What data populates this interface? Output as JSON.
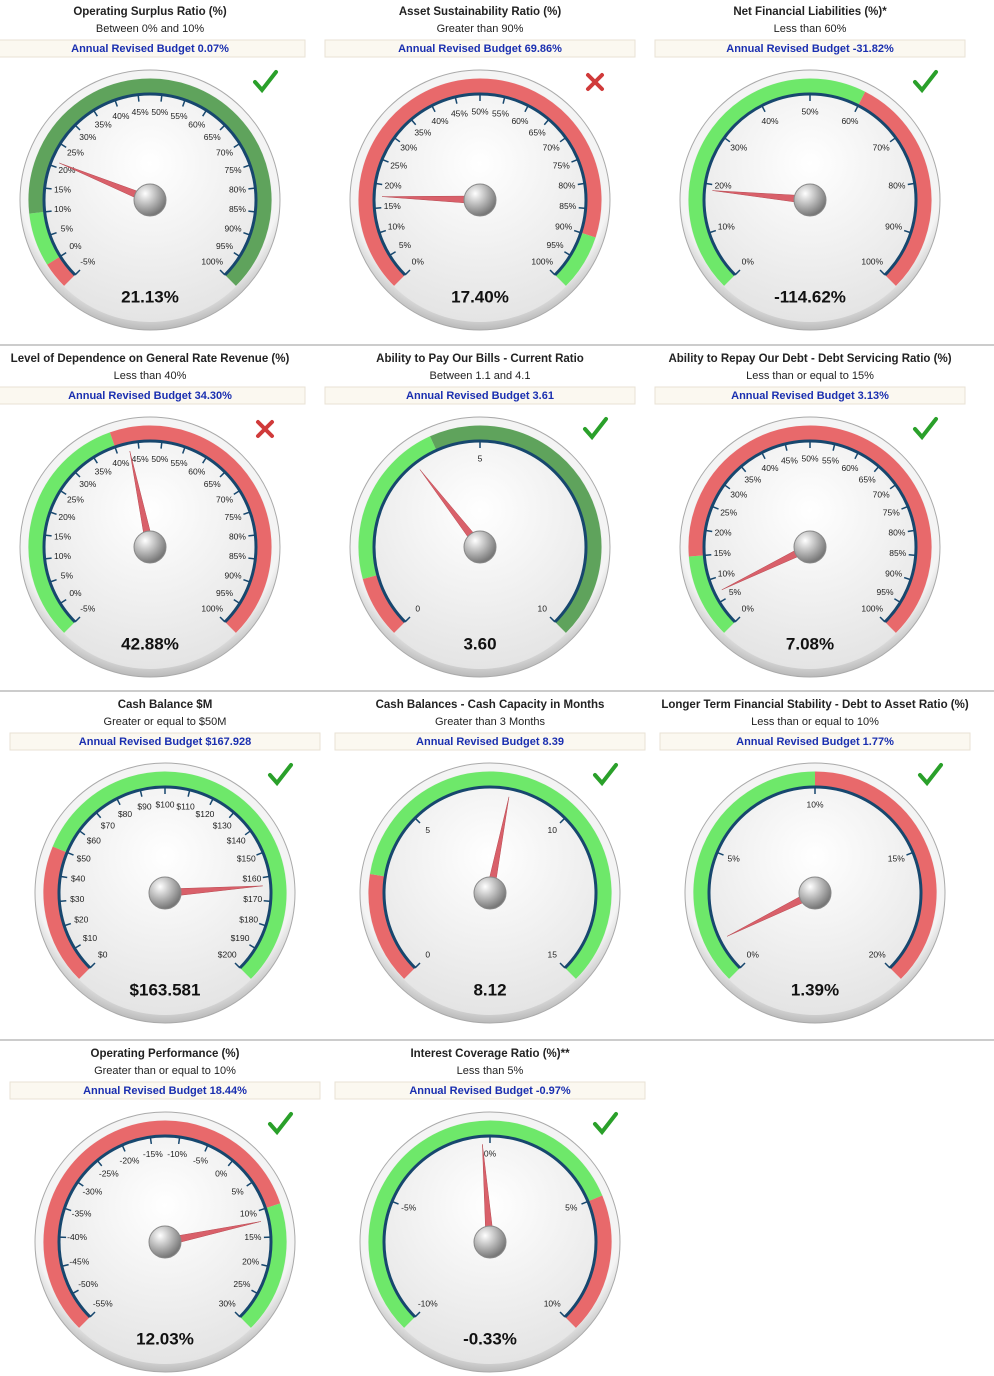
{
  "chart_data": [
    {
      "type": "gauge",
      "title": "Operating Surplus Ratio (%)",
      "subtitle": "Between 0% and 10%",
      "budget": "Annual Revised Budget 0.07%",
      "value": 21.13,
      "value_label": "21.13%",
      "lim": [
        -5,
        100
      ],
      "status": "pass",
      "ticks": [
        {
          "value": -5,
          "label": "-5%"
        },
        {
          "value": 0,
          "label": "0%"
        },
        {
          "value": 5,
          "label": "5%"
        },
        {
          "value": 10,
          "label": "10%"
        },
        {
          "value": 15,
          "label": "15%"
        },
        {
          "value": 20,
          "label": "20%"
        },
        {
          "value": 25,
          "label": "25%"
        },
        {
          "value": 30,
          "label": "30%"
        },
        {
          "value": 35,
          "label": "35%"
        },
        {
          "value": 40,
          "label": "40%"
        },
        {
          "value": 45,
          "label": "45%"
        },
        {
          "value": 50,
          "label": "50%"
        },
        {
          "value": 55,
          "label": "55%"
        },
        {
          "value": 60,
          "label": "60%"
        },
        {
          "value": 65,
          "label": "65%"
        },
        {
          "value": 70,
          "label": "70%"
        },
        {
          "value": 75,
          "label": "75%"
        },
        {
          "value": 80,
          "label": "80%"
        },
        {
          "value": 85,
          "label": "85%"
        },
        {
          "value": 90,
          "label": "90%"
        },
        {
          "value": 95,
          "label": "95%"
        },
        {
          "value": 100,
          "label": "100%"
        }
      ],
      "bands": [
        {
          "from": -5,
          "to": 0,
          "color": "#e8696b"
        },
        {
          "from": 0,
          "to": 10,
          "color": "#6ee86a"
        },
        {
          "from": 10,
          "to": 100,
          "color": "#5fa35c"
        }
      ]
    },
    {
      "type": "gauge",
      "title": "Asset Sustainability Ratio (%)",
      "subtitle": "Greater than 90%",
      "budget": "Annual Revised Budget  69.86%",
      "value": 17.4,
      "value_label": "17.40%",
      "lim": [
        0,
        100
      ],
      "status": "fail",
      "ticks": [
        {
          "value": 0,
          "label": "0%"
        },
        {
          "value": 5,
          "label": "5%"
        },
        {
          "value": 10,
          "label": "10%"
        },
        {
          "value": 15,
          "label": "15%"
        },
        {
          "value": 20,
          "label": "20%"
        },
        {
          "value": 25,
          "label": "25%"
        },
        {
          "value": 30,
          "label": "30%"
        },
        {
          "value": 35,
          "label": "35%"
        },
        {
          "value": 40,
          "label": "40%"
        },
        {
          "value": 45,
          "label": "45%"
        },
        {
          "value": 50,
          "label": "50%"
        },
        {
          "value": 55,
          "label": "55%"
        },
        {
          "value": 60,
          "label": "60%"
        },
        {
          "value": 65,
          "label": "65%"
        },
        {
          "value": 70,
          "label": "70%"
        },
        {
          "value": 75,
          "label": "75%"
        },
        {
          "value": 80,
          "label": "80%"
        },
        {
          "value": 85,
          "label": "85%"
        },
        {
          "value": 90,
          "label": "90%"
        },
        {
          "value": 95,
          "label": "95%"
        },
        {
          "value": 100,
          "label": "100%"
        }
      ],
      "bands": [
        {
          "from": 0,
          "to": 90,
          "color": "#e8696b"
        },
        {
          "from": 90,
          "to": 100,
          "color": "#6ee86a"
        }
      ]
    },
    {
      "type": "gauge",
      "title": "Net Financial Liabilities (%)*",
      "subtitle": "Less than 60%",
      "budget": "Annual Revised Budget -31.82%",
      "value": -114.62,
      "value_label": "-114.62%",
      "lim": [
        0,
        100
      ],
      "status": "pass",
      "ticks": [
        {
          "value": 0,
          "label": "0%"
        },
        {
          "value": 10,
          "label": "10%"
        },
        {
          "value": 20,
          "label": "20%"
        },
        {
          "value": 30,
          "label": "30%"
        },
        {
          "value": 40,
          "label": "40%"
        },
        {
          "value": 50,
          "label": "50%"
        },
        {
          "value": 60,
          "label": "60%"
        },
        {
          "value": 70,
          "label": "70%"
        },
        {
          "value": 80,
          "label": "80%"
        },
        {
          "value": 90,
          "label": "90%"
        },
        {
          "value": 100,
          "label": "100%"
        }
      ],
      "bands": [
        {
          "from": 0,
          "to": 60,
          "color": "#6ee86a"
        },
        {
          "from": 60,
          "to": 100,
          "color": "#e8696b"
        }
      ]
    },
    {
      "type": "gauge",
      "title": "Level of Dependence on General Rate Revenue (%)",
      "subtitle": "Less than 40%",
      "budget": "Annual Revised Budget  34.30%",
      "value": 42.88,
      "value_label": "42.88%",
      "lim": [
        -5,
        100
      ],
      "status": "fail",
      "ticks": [
        {
          "value": -5,
          "label": "-5%"
        },
        {
          "value": 0,
          "label": "0%"
        },
        {
          "value": 5,
          "label": "5%"
        },
        {
          "value": 10,
          "label": "10%"
        },
        {
          "value": 15,
          "label": "15%"
        },
        {
          "value": 20,
          "label": "20%"
        },
        {
          "value": 25,
          "label": "25%"
        },
        {
          "value": 30,
          "label": "30%"
        },
        {
          "value": 35,
          "label": "35%"
        },
        {
          "value": 40,
          "label": "40%"
        },
        {
          "value": 45,
          "label": "45%"
        },
        {
          "value": 50,
          "label": "50%"
        },
        {
          "value": 55,
          "label": "55%"
        },
        {
          "value": 60,
          "label": "60%"
        },
        {
          "value": 65,
          "label": "65%"
        },
        {
          "value": 70,
          "label": "70%"
        },
        {
          "value": 75,
          "label": "75%"
        },
        {
          "value": 80,
          "label": "80%"
        },
        {
          "value": 85,
          "label": "85%"
        },
        {
          "value": 90,
          "label": "90%"
        },
        {
          "value": 95,
          "label": "95%"
        },
        {
          "value": 100,
          "label": "100%"
        }
      ],
      "bands": [
        {
          "from": -5,
          "to": 40,
          "color": "#6ee86a"
        },
        {
          "from": 40,
          "to": 100,
          "color": "#e8696b"
        }
      ]
    },
    {
      "type": "gauge",
      "title": "Ability to Pay Our Bills - Current Ratio",
      "subtitle": "Between 1.1 and 4.1",
      "budget": "Annual Revised Budget 3.61",
      "value": 3.6,
      "value_label": "3.60",
      "lim": [
        0,
        10
      ],
      "status": "pass",
      "ticks": [
        0,
        5,
        10
      ],
      "bands": [
        {
          "from": 0,
          "to": 1.1,
          "color": "#e8696b"
        },
        {
          "from": 1.1,
          "to": 4.1,
          "color": "#6ee86a"
        },
        {
          "from": 4.1,
          "to": 10,
          "color": "#5fa35c"
        }
      ]
    },
    {
      "type": "gauge",
      "title": "Ability to Repay Our Debt - Debt Servicing Ratio (%)",
      "subtitle": "Less than or equal to 15%",
      "budget": "Annual Revised Budget 3.13%",
      "value": 7.08,
      "value_label": "7.08%",
      "lim": [
        0,
        100
      ],
      "status": "pass",
      "ticks": [
        {
          "value": 0,
          "label": "0%"
        },
        {
          "value": 5,
          "label": "5%"
        },
        {
          "value": 10,
          "label": "10%"
        },
        {
          "value": 15,
          "label": "15%"
        },
        {
          "value": 20,
          "label": "20%"
        },
        {
          "value": 25,
          "label": "25%"
        },
        {
          "value": 30,
          "label": "30%"
        },
        {
          "value": 35,
          "label": "35%"
        },
        {
          "value": 40,
          "label": "40%"
        },
        {
          "value": 45,
          "label": "45%"
        },
        {
          "value": 50,
          "label": "50%"
        },
        {
          "value": 55,
          "label": "55%"
        },
        {
          "value": 60,
          "label": "60%"
        },
        {
          "value": 65,
          "label": "65%"
        },
        {
          "value": 70,
          "label": "70%"
        },
        {
          "value": 75,
          "label": "75%"
        },
        {
          "value": 80,
          "label": "80%"
        },
        {
          "value": 85,
          "label": "85%"
        },
        {
          "value": 90,
          "label": "90%"
        },
        {
          "value": 95,
          "label": "95%"
        },
        {
          "value": 100,
          "label": "100%"
        }
      ],
      "bands": [
        {
          "from": 0,
          "to": 15,
          "color": "#6ee86a"
        },
        {
          "from": 15,
          "to": 100,
          "color": "#e8696b"
        }
      ]
    },
    {
      "type": "gauge",
      "title": "Cash Balance $M",
      "subtitle": "Greater or equal to $50M",
      "budget": "Annual Revised Budget $167.928",
      "value": 163.581,
      "value_label": "$163.581",
      "lim": [
        0,
        200
      ],
      "status": "pass",
      "ticks": [
        {
          "value": 0,
          "label": "$0"
        },
        {
          "value": 10,
          "label": "$10"
        },
        {
          "value": 20,
          "label": "$20"
        },
        {
          "value": 30,
          "label": "$30"
        },
        {
          "value": 40,
          "label": "$40"
        },
        {
          "value": 50,
          "label": "$50"
        },
        {
          "value": 60,
          "label": "$60"
        },
        {
          "value": 70,
          "label": "$70"
        },
        {
          "value": 80,
          "label": "$80"
        },
        {
          "value": 90,
          "label": "$90"
        },
        {
          "value": 100,
          "label": "$100"
        },
        {
          "value": 110,
          "label": "$110"
        },
        {
          "value": 120,
          "label": "$120"
        },
        {
          "value": 130,
          "label": "$130"
        },
        {
          "value": 140,
          "label": "$140"
        },
        {
          "value": 150,
          "label": "$150"
        },
        {
          "value": 160,
          "label": "$160"
        },
        {
          "value": 170,
          "label": "$170"
        },
        {
          "value": 180,
          "label": "$180"
        },
        {
          "value": 190,
          "label": "$190"
        },
        {
          "value": 200,
          "label": "$200"
        }
      ],
      "bands": [
        {
          "from": 0,
          "to": 50,
          "color": "#e8696b"
        },
        {
          "from": 50,
          "to": 200,
          "color": "#6ee86a"
        }
      ]
    },
    {
      "type": "gauge",
      "title": "Cash Balances - Cash Capacity in Months",
      "subtitle": "Greater than 3 Months",
      "budget": "Annual Revised Budget 8.39",
      "value": 8.12,
      "lim": [
        0,
        15
      ],
      "status": "pass",
      "ticks": [
        0,
        5,
        10,
        15
      ],
      "bands": [
        {
          "from": 0,
          "to": 3,
          "color": "#e8696b"
        },
        {
          "from": 3,
          "to": 15,
          "color": "#6ee86a"
        }
      ]
    },
    {
      "type": "gauge",
      "title": "Longer Term Financial Stability - Debt to Asset Ratio (%)",
      "subtitle": "Less than or equal to 10%",
      "budget": "Annual Revised Budget 1.77%",
      "value": 1.39,
      "value_label": "1.39%",
      "lim": [
        0,
        20
      ],
      "status": "pass",
      "ticks": [
        {
          "value": 0,
          "label": "0%"
        },
        {
          "value": 5,
          "label": "5%"
        },
        {
          "value": 10,
          "label": "10%"
        },
        {
          "value": 15,
          "label": "15%"
        },
        {
          "value": 20,
          "label": "20%"
        }
      ],
      "bands": [
        {
          "from": 0,
          "to": 10,
          "color": "#6ee86a"
        },
        {
          "from": 10,
          "to": 20,
          "color": "#e8696b"
        }
      ]
    },
    {
      "type": "gauge",
      "title": "Operating Performance (%)",
      "subtitle": "Greater than or equal to 10%",
      "budget": "Annual Revised Budget 18.44%",
      "value": 12.03,
      "value_label": "12.03%",
      "lim": [
        -55,
        30
      ],
      "status": "pass",
      "ticks": [
        {
          "value": -55,
          "label": "-55%"
        },
        {
          "value": -50,
          "label": "-50%"
        },
        {
          "value": -45,
          "label": "-45%"
        },
        {
          "value": -40,
          "label": "-40%"
        },
        {
          "value": -35,
          "label": "-35%"
        },
        {
          "value": -30,
          "label": "-30%"
        },
        {
          "value": -25,
          "label": "-25%"
        },
        {
          "value": -20,
          "label": "-20%"
        },
        {
          "value": -15,
          "label": "-15%"
        },
        {
          "value": -10,
          "label": "-10%"
        },
        {
          "value": -5,
          "label": "-5%"
        },
        {
          "value": 0,
          "label": "0%"
        },
        {
          "value": 5,
          "label": "5%"
        },
        {
          "value": 10,
          "label": "10%"
        },
        {
          "value": 15,
          "label": "15%"
        },
        {
          "value": 20,
          "label": "20%"
        },
        {
          "value": 25,
          "label": "25%"
        },
        {
          "value": 30,
          "label": "30%"
        }
      ],
      "bands": [
        {
          "from": -55,
          "to": 10,
          "color": "#e8696b"
        },
        {
          "from": 10,
          "to": 30,
          "color": "#6ee86a"
        }
      ]
    },
    {
      "type": "gauge",
      "title": "Interest Coverage Ratio (%)**",
      "subtitle": "Less than 5%",
      "budget": "Annual Revised Budget -0.97%",
      "value": -0.33,
      "value_label": "-0.33%",
      "lim": [
        -10,
        10
      ],
      "status": "pass",
      "ticks": [
        {
          "value": -10,
          "label": "-10%"
        },
        {
          "value": -5,
          "label": "-5%"
        },
        {
          "value": 0,
          "label": "0%"
        },
        {
          "value": 5,
          "label": "5%"
        },
        {
          "value": 10,
          "label": "10%"
        }
      ],
      "bands": [
        {
          "from": -10,
          "to": 5,
          "color": "#6ee86a"
        },
        {
          "from": 5,
          "to": 10,
          "color": "#e8696b"
        }
      ]
    }
  ]
}
